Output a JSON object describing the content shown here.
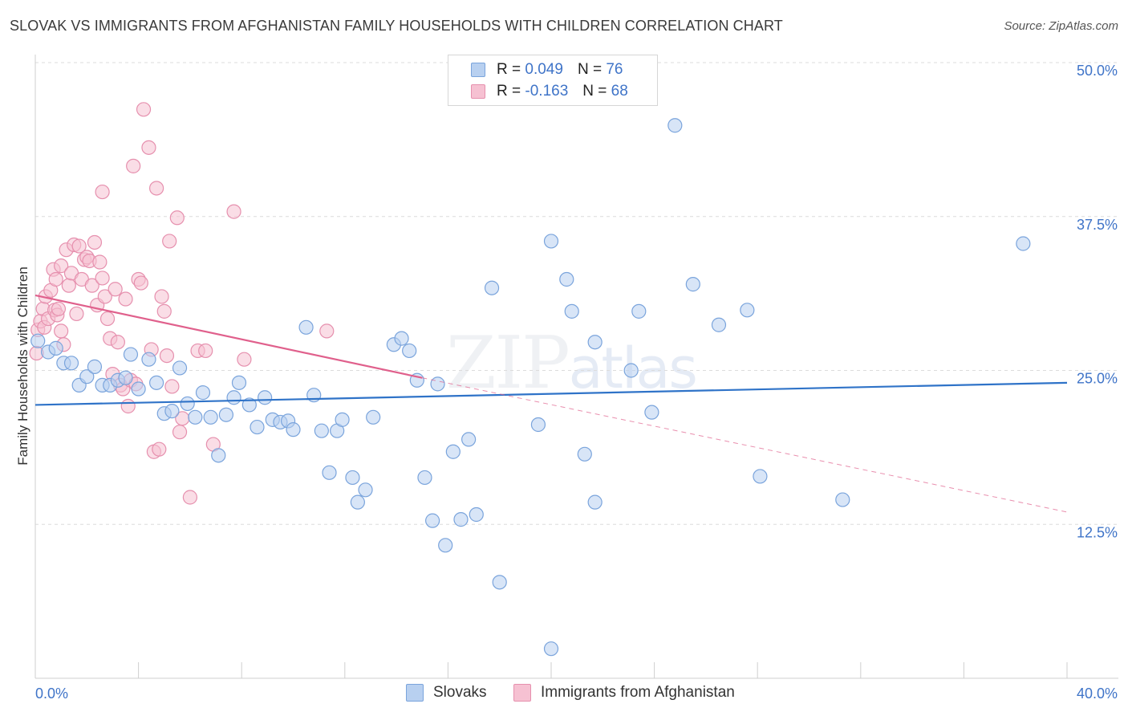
{
  "title": "SLOVAK VS IMMIGRANTS FROM AFGHANISTAN FAMILY HOUSEHOLDS WITH CHILDREN CORRELATION CHART",
  "source": "Source: ZipAtlas.com",
  "watermark": {
    "zip": "ZIP",
    "atlas": "atlas"
  },
  "legend": {
    "rows": [
      {
        "r_label": "R =",
        "r_value": "0.049",
        "n_label": "N =",
        "n_value": "76"
      },
      {
        "r_label": "R =",
        "r_value": "-0.163",
        "n_label": "N =",
        "n_value": "68"
      }
    ]
  },
  "bottom_legend": {
    "series1": "Slovaks",
    "series2": "Immigrants from Afghanistan"
  },
  "colors": {
    "blue_fill": "#b8d0f0",
    "blue_stroke": "#7aa4dc",
    "blue_line": "#2f73c8",
    "pink_fill": "#f6c1d2",
    "pink_stroke": "#e690ae",
    "pink_line": "#e0608c",
    "grid": "#dcdcdc",
    "axis_text": "#3f74c8"
  },
  "chart_data": {
    "type": "scatter",
    "title": "SLOVAK VS IMMIGRANTS FROM AFGHANISTAN FAMILY HOUSEHOLDS WITH CHILDREN CORRELATION CHART",
    "xlabel": "",
    "ylabel": "Family Households with Children",
    "xlim": [
      0,
      40
    ],
    "ylim": [
      0,
      50
    ],
    "x_tick_labels": [
      {
        "value": 0,
        "label": "0.0%"
      },
      {
        "value": 40,
        "label": "40.0%"
      }
    ],
    "y_tick_labels": [
      {
        "value": 12.5,
        "label": "12.5%"
      },
      {
        "value": 25,
        "label": "25.0%"
      },
      {
        "value": 37.5,
        "label": "37.5%"
      },
      {
        "value": 50,
        "label": "50.0%"
      }
    ],
    "series": [
      {
        "name": "Slovaks",
        "r": 0.049,
        "n": 76,
        "trend": {
          "x": [
            0,
            40
          ],
          "y": [
            22.2,
            24.0
          ],
          "dashed_extension": false
        },
        "points": [
          [
            0.1,
            27.4
          ],
          [
            0.5,
            26.5
          ],
          [
            0.8,
            26.8
          ],
          [
            1.1,
            25.6
          ],
          [
            1.4,
            25.6
          ],
          [
            1.7,
            23.8
          ],
          [
            2.0,
            24.5
          ],
          [
            2.3,
            25.3
          ],
          [
            2.6,
            23.8
          ],
          [
            2.9,
            23.8
          ],
          [
            3.2,
            24.2
          ],
          [
            3.5,
            24.4
          ],
          [
            3.7,
            26.3
          ],
          [
            4.0,
            23.5
          ],
          [
            4.4,
            25.9
          ],
          [
            4.7,
            24.0
          ],
          [
            5.0,
            21.5
          ],
          [
            5.3,
            21.7
          ],
          [
            5.6,
            25.2
          ],
          [
            5.9,
            22.3
          ],
          [
            6.2,
            21.2
          ],
          [
            6.5,
            23.2
          ],
          [
            6.8,
            21.2
          ],
          [
            7.1,
            18.1
          ],
          [
            7.4,
            21.4
          ],
          [
            7.7,
            22.8
          ],
          [
            7.9,
            24.0
          ],
          [
            8.3,
            22.2
          ],
          [
            8.6,
            20.4
          ],
          [
            8.9,
            22.8
          ],
          [
            9.2,
            21.0
          ],
          [
            9.5,
            20.8
          ],
          [
            9.8,
            20.9
          ],
          [
            10.0,
            20.2
          ],
          [
            10.5,
            28.5
          ],
          [
            10.8,
            23.0
          ],
          [
            11.1,
            20.1
          ],
          [
            11.4,
            16.7
          ],
          [
            11.7,
            20.1
          ],
          [
            11.9,
            21.0
          ],
          [
            12.3,
            16.3
          ],
          [
            12.5,
            14.3
          ],
          [
            12.8,
            15.3
          ],
          [
            13.1,
            21.2
          ],
          [
            13.9,
            27.1
          ],
          [
            14.2,
            27.6
          ],
          [
            14.5,
            26.6
          ],
          [
            14.8,
            24.2
          ],
          [
            15.1,
            16.3
          ],
          [
            15.4,
            12.8
          ],
          [
            15.6,
            23.9
          ],
          [
            15.9,
            10.8
          ],
          [
            16.2,
            18.4
          ],
          [
            16.5,
            12.9
          ],
          [
            16.8,
            19.4
          ],
          [
            17.1,
            13.3
          ],
          [
            17.7,
            31.7
          ],
          [
            18.0,
            7.8
          ],
          [
            19.5,
            20.6
          ],
          [
            20.0,
            35.5
          ],
          [
            20.0,
            2.4
          ],
          [
            20.6,
            32.4
          ],
          [
            20.8,
            29.8
          ],
          [
            21.3,
            18.2
          ],
          [
            21.7,
            27.3
          ],
          [
            21.7,
            14.3
          ],
          [
            23.1,
            25.0
          ],
          [
            23.4,
            29.8
          ],
          [
            23.9,
            21.6
          ],
          [
            24.8,
            44.9
          ],
          [
            25.5,
            32.0
          ],
          [
            26.5,
            28.7
          ],
          [
            27.6,
            29.9
          ],
          [
            28.1,
            16.4
          ],
          [
            31.3,
            14.5
          ],
          [
            38.3,
            35.3
          ]
        ]
      },
      {
        "name": "Immigrants from Afghanistan",
        "r": -0.163,
        "n": 68,
        "trend": {
          "x": [
            0,
            15
          ],
          "y": [
            31.1,
            24.4
          ],
          "dashed_extension": true,
          "dashed_to": [
            40,
            13.5
          ]
        },
        "points": [
          [
            0.05,
            26.4
          ],
          [
            0.1,
            28.3
          ],
          [
            0.2,
            29.0
          ],
          [
            0.3,
            30.0
          ],
          [
            0.35,
            28.5
          ],
          [
            0.4,
            31.0
          ],
          [
            0.5,
            29.2
          ],
          [
            0.6,
            31.5
          ],
          [
            0.7,
            33.2
          ],
          [
            0.75,
            29.9
          ],
          [
            0.8,
            32.4
          ],
          [
            0.85,
            29.5
          ],
          [
            0.9,
            30.0
          ],
          [
            1.0,
            33.5
          ],
          [
            1.0,
            28.2
          ],
          [
            1.1,
            27.1
          ],
          [
            1.2,
            34.8
          ],
          [
            1.3,
            31.9
          ],
          [
            1.4,
            32.9
          ],
          [
            1.5,
            35.2
          ],
          [
            1.6,
            29.6
          ],
          [
            1.7,
            35.1
          ],
          [
            1.8,
            32.4
          ],
          [
            1.9,
            34.0
          ],
          [
            2.0,
            34.2
          ],
          [
            2.1,
            33.9
          ],
          [
            2.2,
            31.9
          ],
          [
            2.3,
            35.4
          ],
          [
            2.4,
            30.3
          ],
          [
            2.5,
            33.8
          ],
          [
            2.6,
            32.5
          ],
          [
            2.7,
            31.0
          ],
          [
            2.8,
            29.2
          ],
          [
            2.9,
            27.6
          ],
          [
            3.0,
            24.7
          ],
          [
            3.1,
            31.6
          ],
          [
            3.2,
            27.3
          ],
          [
            3.3,
            23.8
          ],
          [
            3.4,
            23.5
          ],
          [
            3.5,
            30.8
          ],
          [
            3.6,
            22.1
          ],
          [
            3.7,
            24.2
          ],
          [
            3.8,
            41.6
          ],
          [
            3.9,
            23.9
          ],
          [
            4.0,
            32.4
          ],
          [
            4.1,
            32.1
          ],
          [
            4.2,
            46.2
          ],
          [
            4.4,
            43.1
          ],
          [
            4.5,
            26.7
          ],
          [
            4.6,
            18.4
          ],
          [
            4.7,
            39.8
          ],
          [
            4.8,
            18.6
          ],
          [
            4.9,
            31.0
          ],
          [
            5.0,
            29.8
          ],
          [
            5.1,
            26.2
          ],
          [
            5.2,
            35.5
          ],
          [
            5.3,
            23.7
          ],
          [
            5.5,
            37.4
          ],
          [
            5.6,
            20.0
          ],
          [
            5.7,
            21.1
          ],
          [
            6.0,
            14.7
          ],
          [
            6.3,
            26.6
          ],
          [
            6.6,
            26.6
          ],
          [
            6.9,
            19.0
          ],
          [
            7.7,
            37.9
          ],
          [
            8.1,
            25.9
          ],
          [
            11.3,
            28.2
          ],
          [
            2.6,
            39.5
          ]
        ]
      }
    ]
  }
}
